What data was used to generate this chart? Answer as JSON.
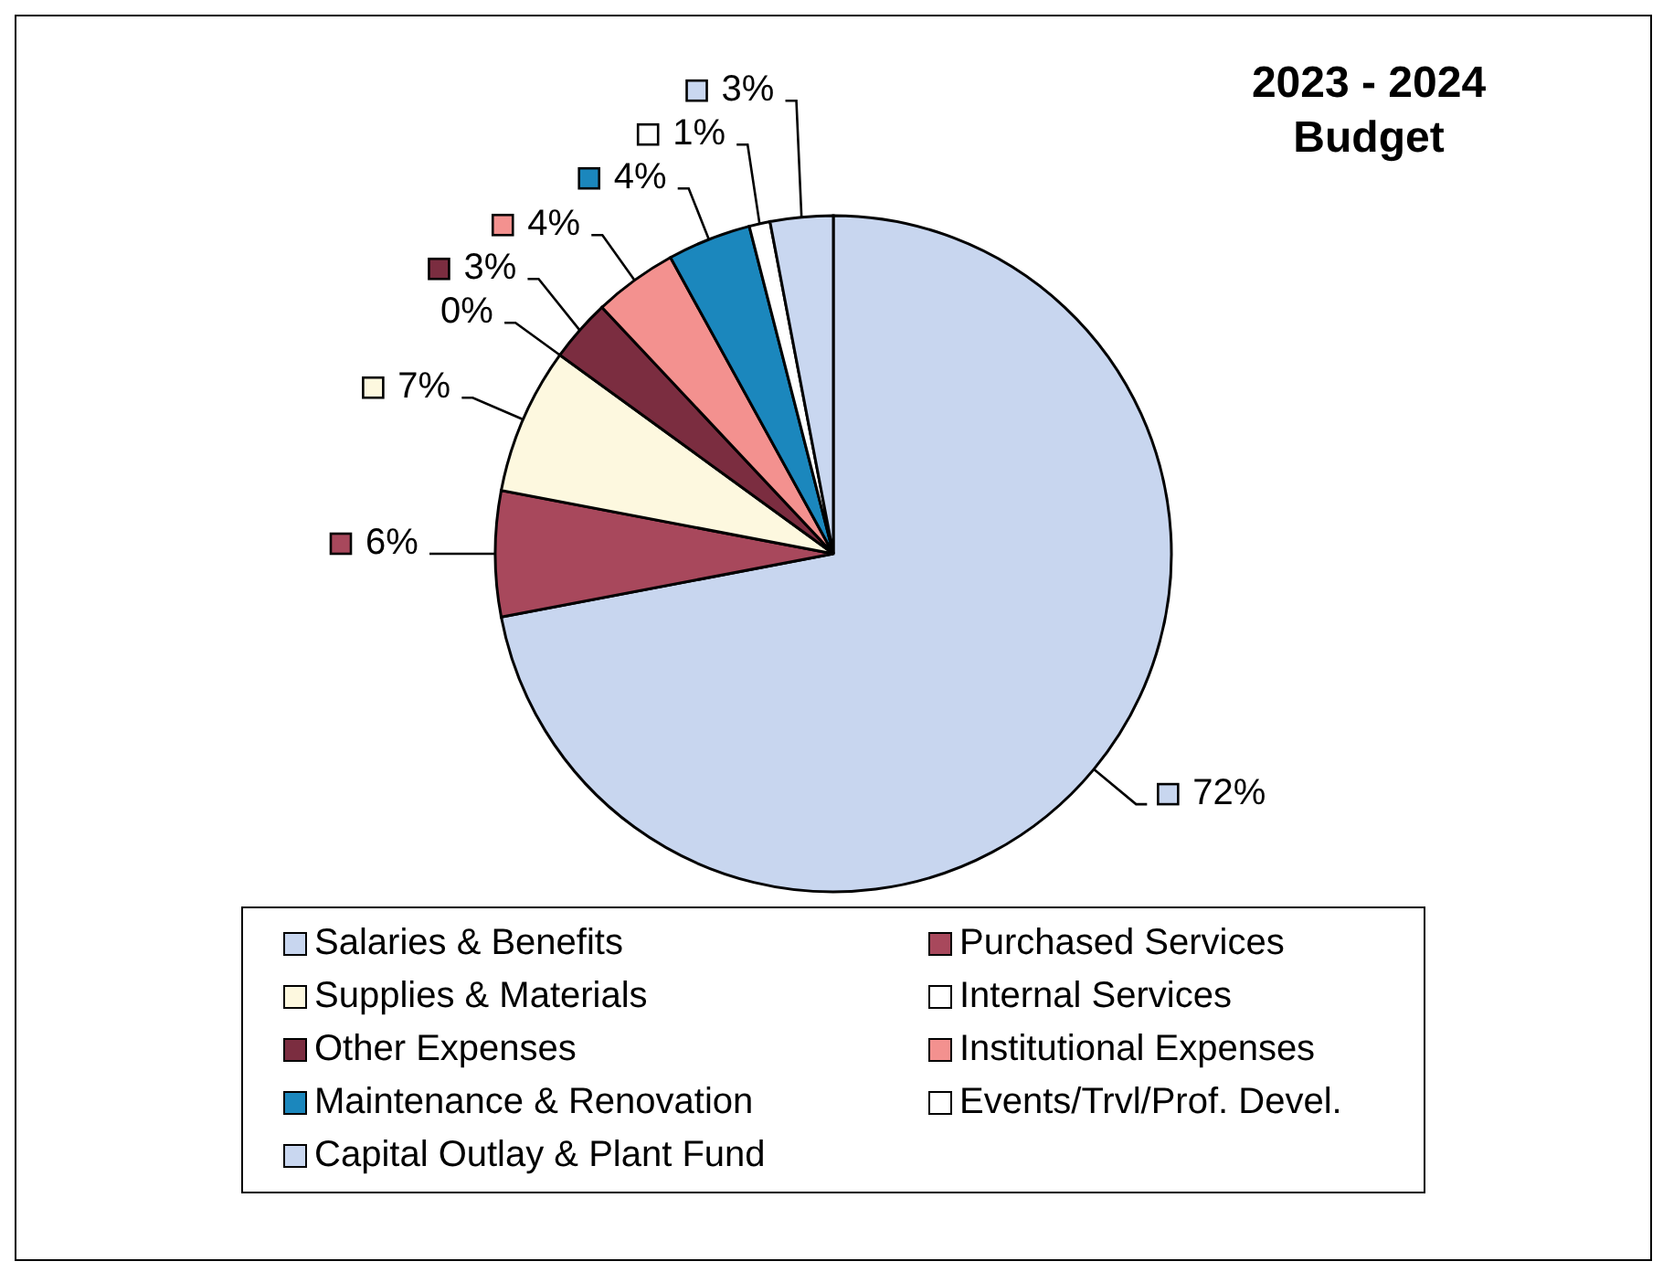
{
  "chart_data": {
    "type": "pie",
    "title": "2023 - 2024 Budget",
    "categories": [
      "Salaries & Benefits",
      "Purchased Services",
      "Supplies & Materials",
      "Internal Services",
      "Other Expenses",
      "Institutional Expenses",
      "Maintenance & Renovation",
      "Events/Trvl/Prof. Devel.",
      "Capital Outlay & Plant Fund"
    ],
    "values": [
      72,
      6,
      7,
      0,
      3,
      4,
      4,
      1,
      3
    ],
    "value_labels": [
      "72%",
      "6%",
      "7%",
      "0%",
      "3%",
      "4%",
      "4%",
      "1%",
      "3%"
    ],
    "colors": [
      "#c8d6ef",
      "#a8485c",
      "#fdf8df",
      "#ffffff",
      "#7b2d40",
      "#f3918f",
      "#1b87bd",
      "#ffffff",
      "#c9d7f0"
    ],
    "legend": "bottom"
  }
}
